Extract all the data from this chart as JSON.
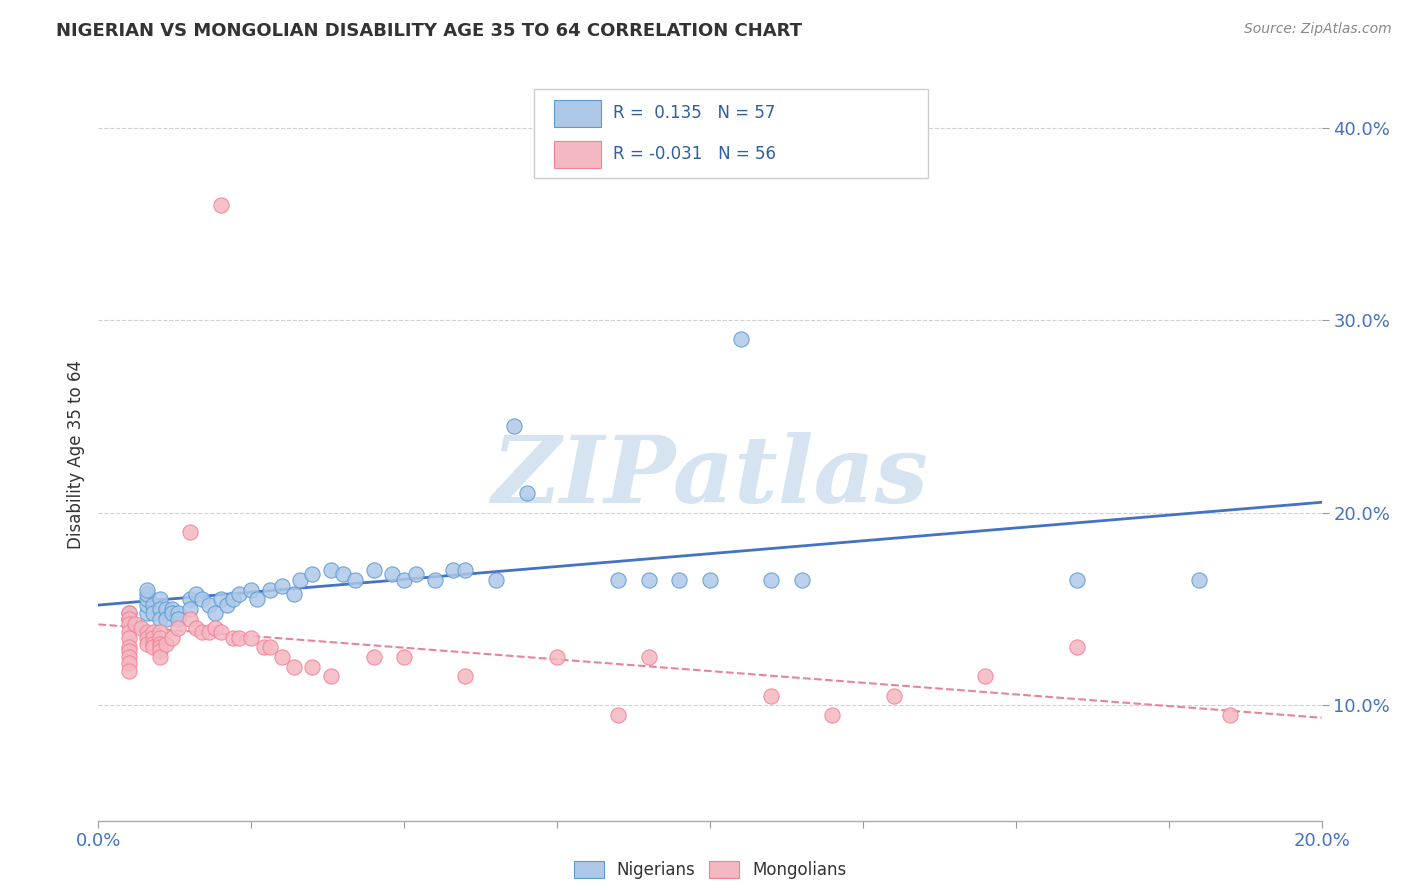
{
  "title": "NIGERIAN VS MONGOLIAN DISABILITY AGE 35 TO 64 CORRELATION CHART",
  "source": "Source: ZipAtlas.com",
  "xlim": [
    0.0,
    0.2
  ],
  "ylim": [
    0.04,
    0.42
  ],
  "nigerian_R": 0.135,
  "nigerian_N": 57,
  "mongolian_R": -0.031,
  "mongolian_N": 56,
  "nigerian_color": "#aec8e8",
  "mongolian_color": "#f4b8c1",
  "nigerian_edge": "#5b9bd5",
  "mongolian_edge": "#f48098",
  "trend_nigerian_color": "#4472c4",
  "trend_mongolian_color": "#e8849a",
  "watermark_color": "#d5e4f0",
  "nigerian_x": [
    0.005,
    0.005,
    0.008,
    0.008,
    0.008,
    0.008,
    0.008,
    0.009,
    0.009,
    0.01,
    0.01,
    0.01,
    0.011,
    0.011,
    0.012,
    0.012,
    0.013,
    0.013,
    0.015,
    0.015,
    0.016,
    0.017,
    0.018,
    0.019,
    0.02,
    0.021,
    0.022,
    0.023,
    0.025,
    0.026,
    0.028,
    0.03,
    0.032,
    0.033,
    0.035,
    0.038,
    0.04,
    0.042,
    0.045,
    0.048,
    0.05,
    0.052,
    0.055,
    0.058,
    0.06,
    0.065,
    0.068,
    0.07,
    0.085,
    0.09,
    0.095,
    0.1,
    0.105,
    0.11,
    0.115,
    0.16,
    0.18
  ],
  "nigerian_y": [
    0.148,
    0.145,
    0.148,
    0.152,
    0.155,
    0.158,
    0.16,
    0.152,
    0.148,
    0.155,
    0.15,
    0.145,
    0.15,
    0.145,
    0.15,
    0.148,
    0.148,
    0.145,
    0.155,
    0.15,
    0.158,
    0.155,
    0.152,
    0.148,
    0.155,
    0.152,
    0.155,
    0.158,
    0.16,
    0.155,
    0.16,
    0.162,
    0.158,
    0.165,
    0.168,
    0.17,
    0.168,
    0.165,
    0.17,
    0.168,
    0.165,
    0.168,
    0.165,
    0.17,
    0.17,
    0.165,
    0.245,
    0.21,
    0.165,
    0.165,
    0.165,
    0.165,
    0.29,
    0.165,
    0.165,
    0.165,
    0.165
  ],
  "mongolian_x": [
    0.005,
    0.005,
    0.005,
    0.005,
    0.005,
    0.005,
    0.005,
    0.005,
    0.005,
    0.005,
    0.006,
    0.007,
    0.008,
    0.008,
    0.008,
    0.009,
    0.009,
    0.009,
    0.009,
    0.01,
    0.01,
    0.01,
    0.01,
    0.01,
    0.01,
    0.011,
    0.012,
    0.013,
    0.015,
    0.015,
    0.016,
    0.017,
    0.018,
    0.019,
    0.02,
    0.022,
    0.023,
    0.025,
    0.027,
    0.028,
    0.03,
    0.032,
    0.035,
    0.038,
    0.045,
    0.05,
    0.06,
    0.075,
    0.085,
    0.09,
    0.11,
    0.12,
    0.13,
    0.145,
    0.16,
    0.185
  ],
  "mongolian_y": [
    0.148,
    0.145,
    0.142,
    0.138,
    0.135,
    0.13,
    0.128,
    0.125,
    0.122,
    0.118,
    0.142,
    0.14,
    0.138,
    0.135,
    0.132,
    0.138,
    0.135,
    0.132,
    0.13,
    0.138,
    0.135,
    0.132,
    0.13,
    0.128,
    0.125,
    0.132,
    0.135,
    0.14,
    0.19,
    0.145,
    0.14,
    0.138,
    0.138,
    0.14,
    0.138,
    0.135,
    0.135,
    0.135,
    0.13,
    0.13,
    0.125,
    0.12,
    0.12,
    0.115,
    0.125,
    0.125,
    0.115,
    0.125,
    0.095,
    0.125,
    0.105,
    0.095,
    0.105,
    0.115,
    0.13,
    0.095
  ],
  "mongolian_outlier_x": [
    0.02
  ],
  "mongolian_outlier_y": [
    0.36
  ]
}
